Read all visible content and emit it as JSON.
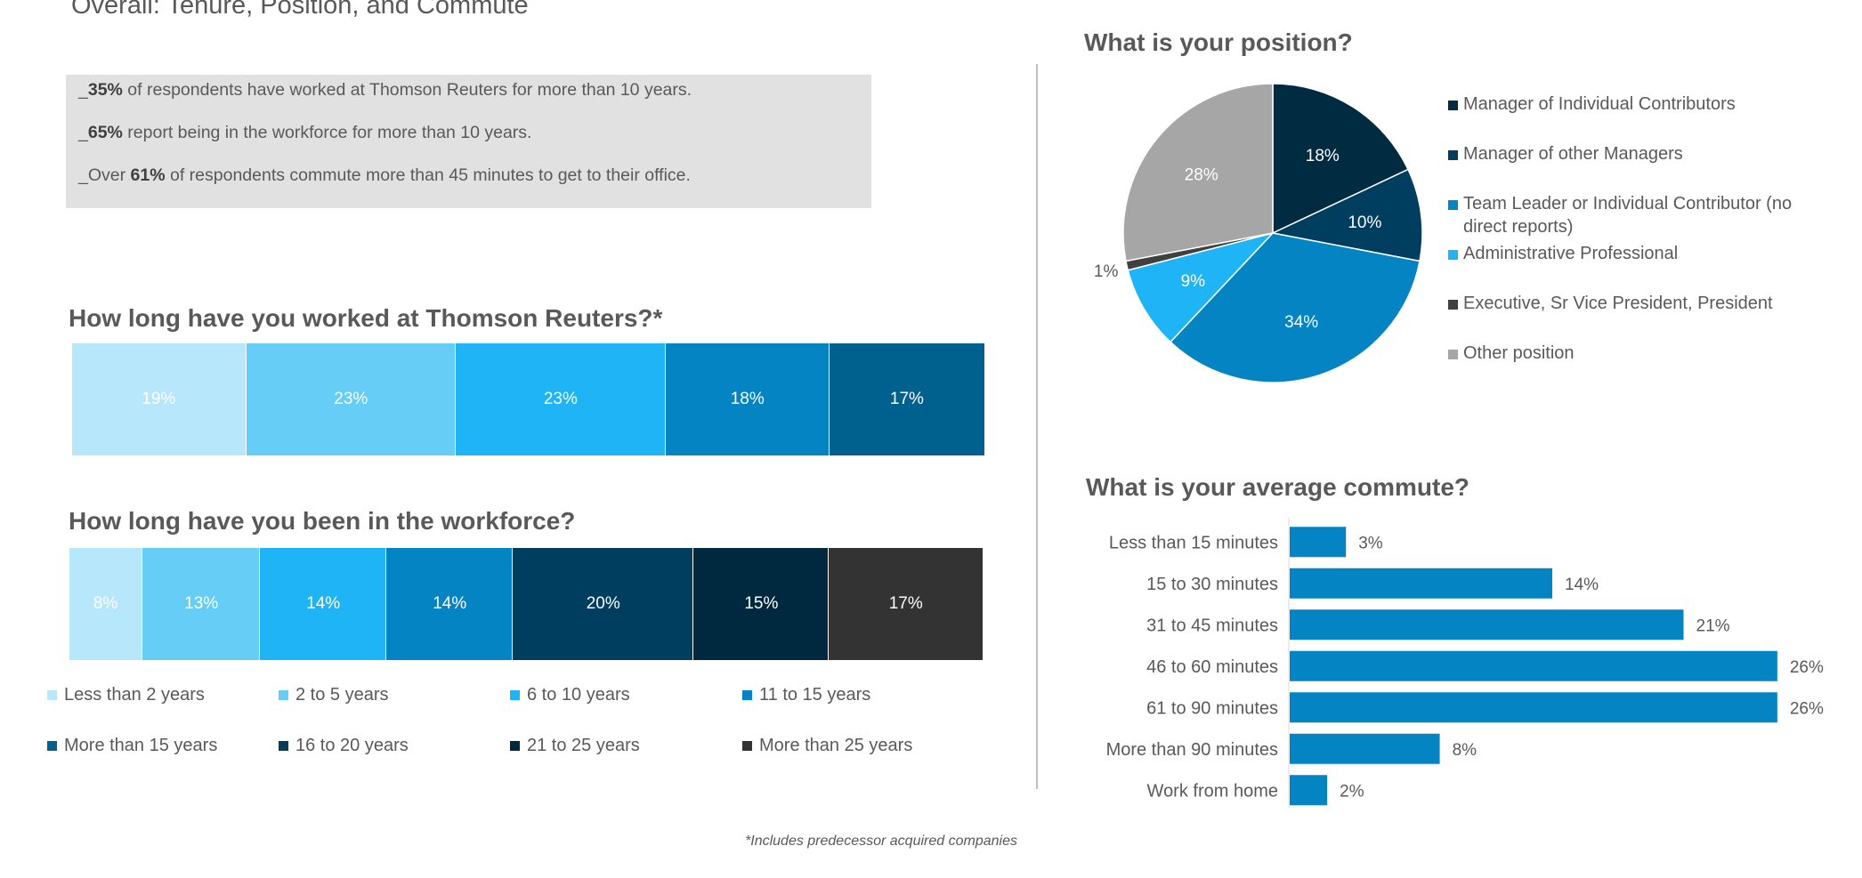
{
  "page": {
    "title": "Overall: Tenure, Position, and Commute"
  },
  "summary": {
    "lines": [
      {
        "lead": "_",
        "bold": "35%",
        "rest": " of respondents have worked at Thomson Reuters for more than 10 years."
      },
      {
        "lead": "_",
        "bold": "65%",
        "rest": " report being in the workforce for more than 10 years."
      },
      {
        "lead": "_Over ",
        "bold": "61%",
        "rest": " of respondents commute more than 45 minutes to get to their office."
      }
    ]
  },
  "footnote": "*Includes predecessor acquired companies",
  "legend": {
    "items": [
      {
        "label": "Less than 2 years",
        "color": "#b7e7fb"
      },
      {
        "label": "2 to 5 years",
        "color": "#66cdf7"
      },
      {
        "label": "6 to 10 years",
        "color": "#1eb4f5"
      },
      {
        "label": "11 to 15 years",
        "color": "#0584c3"
      },
      {
        "label": "More than 15 years",
        "color": "#00618f"
      },
      {
        "label": "16 to 20 years",
        "color": "#003e5f"
      },
      {
        "label": "21 to 25 years",
        "color": "#002940"
      },
      {
        "label": "More than 25 years",
        "color": "#333333"
      }
    ]
  },
  "chart_data": [
    {
      "type": "bar",
      "orientation": "horizontal-stacked",
      "title": "How long have you worked at Thomson Reuters?*",
      "segments": [
        {
          "name": "Less than 2 years",
          "value": 19,
          "label": "19%",
          "color": "#b7e7fb"
        },
        {
          "name": "2 to 5 years",
          "value": 23,
          "label": "23%",
          "color": "#66cdf7"
        },
        {
          "name": "6 to 10 years",
          "value": 23,
          "label": "23%",
          "color": "#1eb4f5"
        },
        {
          "name": "11 to 15 years",
          "value": 18,
          "label": "18%",
          "color": "#0584c3"
        },
        {
          "name": "More than 15 years",
          "value": 17,
          "label": "17%",
          "color": "#00618f"
        }
      ]
    },
    {
      "type": "bar",
      "orientation": "horizontal-stacked",
      "title": "How long have you been in the workforce?",
      "segments": [
        {
          "name": "Less than 2 years",
          "value": 8,
          "label": "8%",
          "color": "#b7e7fb"
        },
        {
          "name": "2 to 5 years",
          "value": 13,
          "label": "13%",
          "color": "#66cdf7"
        },
        {
          "name": "6 to 10 years",
          "value": 14,
          "label": "14%",
          "color": "#1eb4f5"
        },
        {
          "name": "11 to 15 years",
          "value": 14,
          "label": "14%",
          "color": "#0584c3"
        },
        {
          "name": "16 to 20 years",
          "value": 20,
          "label": "20%",
          "color": "#003e5f"
        },
        {
          "name": "21 to 25 years",
          "value": 15,
          "label": "15%",
          "color": "#002940"
        },
        {
          "name": "More than 25 years",
          "value": 17,
          "label": "17%",
          "color": "#333333"
        }
      ]
    },
    {
      "type": "pie",
      "title": "What is your position?",
      "slices": [
        {
          "name": "Manager of Individual Contributors",
          "value": 18,
          "label": "18%",
          "color": "#002b40"
        },
        {
          "name": "Manager of other Managers",
          "value": 10,
          "label": "10%",
          "color": "#003e5f"
        },
        {
          "name": "Team Leader or Individual Contributor (no direct reports)",
          "value": 34,
          "label": "34%",
          "color": "#0584c3"
        },
        {
          "name": "Administrative Professional",
          "value": 9,
          "label": "9%",
          "color": "#1eb4f5"
        },
        {
          "name": "Executive, Sr Vice President, President",
          "value": 1,
          "label": "1%",
          "color": "#404040"
        },
        {
          "name": "Other position",
          "value": 28,
          "label": "28%",
          "color": "#a6a6a6"
        }
      ]
    },
    {
      "type": "bar",
      "orientation": "horizontal",
      "title": "What is your average commute?",
      "categories": [
        "Less than 15 minutes",
        "15 to 30 minutes",
        "31 to 45 minutes",
        "46 to 60 minutes",
        "61 to 90 minutes",
        "More than 90 minutes",
        "Work from home"
      ],
      "values": [
        3,
        14,
        21,
        26,
        26,
        8,
        2
      ],
      "labels": [
        "3%",
        "14%",
        "21%",
        "26%",
        "26%",
        "8%",
        "2%"
      ],
      "color": "#0584c3",
      "xlim": [
        0,
        28
      ]
    }
  ]
}
